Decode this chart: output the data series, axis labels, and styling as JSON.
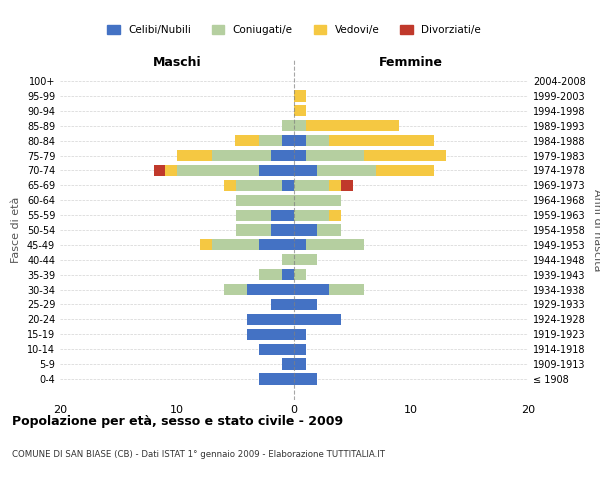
{
  "age_groups": [
    "100+",
    "95-99",
    "90-94",
    "85-89",
    "80-84",
    "75-79",
    "70-74",
    "65-69",
    "60-64",
    "55-59",
    "50-54",
    "45-49",
    "40-44",
    "35-39",
    "30-34",
    "25-29",
    "20-24",
    "15-19",
    "10-14",
    "5-9",
    "0-4"
  ],
  "birth_years": [
    "≤ 1908",
    "1909-1913",
    "1914-1918",
    "1919-1923",
    "1924-1928",
    "1929-1933",
    "1934-1938",
    "1939-1943",
    "1944-1948",
    "1949-1953",
    "1954-1958",
    "1959-1963",
    "1964-1968",
    "1969-1973",
    "1974-1978",
    "1979-1983",
    "1984-1988",
    "1989-1993",
    "1994-1998",
    "1999-2003",
    "2004-2008"
  ],
  "maschi": {
    "celibi": [
      0,
      0,
      0,
      0,
      1,
      2,
      3,
      1,
      0,
      2,
      2,
      3,
      0,
      1,
      4,
      2,
      4,
      4,
      3,
      1,
      3
    ],
    "coniugati": [
      0,
      0,
      0,
      1,
      2,
      5,
      7,
      4,
      5,
      3,
      3,
      4,
      1,
      2,
      2,
      0,
      0,
      0,
      0,
      0,
      0
    ],
    "vedovi": [
      0,
      0,
      0,
      0,
      2,
      3,
      1,
      1,
      0,
      0,
      0,
      1,
      0,
      0,
      0,
      0,
      0,
      0,
      0,
      0,
      0
    ],
    "divorziati": [
      0,
      0,
      0,
      0,
      0,
      0,
      1,
      0,
      0,
      0,
      0,
      0,
      0,
      0,
      0,
      0,
      0,
      0,
      0,
      0,
      0
    ]
  },
  "femmine": {
    "nubili": [
      0,
      0,
      0,
      0,
      1,
      1,
      2,
      0,
      0,
      0,
      2,
      1,
      0,
      0,
      3,
      2,
      4,
      1,
      1,
      1,
      2
    ],
    "coniugate": [
      0,
      0,
      0,
      1,
      2,
      5,
      5,
      3,
      4,
      3,
      2,
      5,
      2,
      1,
      3,
      0,
      0,
      0,
      0,
      0,
      0
    ],
    "vedove": [
      0,
      1,
      1,
      8,
      9,
      7,
      5,
      1,
      0,
      1,
      0,
      0,
      0,
      0,
      0,
      0,
      0,
      0,
      0,
      0,
      0
    ],
    "divorziate": [
      0,
      0,
      0,
      0,
      0,
      0,
      0,
      1,
      0,
      0,
      0,
      0,
      0,
      0,
      0,
      0,
      0,
      0,
      0,
      0,
      0
    ]
  },
  "colors": {
    "celibi_nubili": "#4472c4",
    "coniugati": "#b5cfa0",
    "vedovi": "#f5c842",
    "divorziati": "#c0392b"
  },
  "title": "Popolazione per età, sesso e stato civile - 2009",
  "subtitle": "COMUNE DI SAN BIASE (CB) - Dati ISTAT 1° gennaio 2009 - Elaborazione TUTTITALIA.IT",
  "xlabel_left": "Maschi",
  "xlabel_right": "Femmine",
  "ylabel_left": "Fasce di età",
  "ylabel_right": "Anni di nascita",
  "xlim": 20,
  "legend_labels": [
    "Celibi/Nubili",
    "Coniugati/e",
    "Vedovi/e",
    "Divorziati/e"
  ]
}
